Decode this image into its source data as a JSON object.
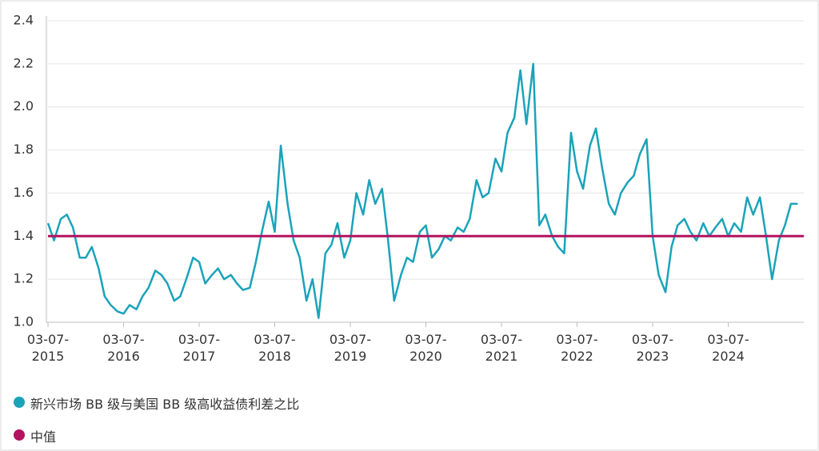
{
  "chart_data": {
    "type": "line",
    "series": [
      {
        "name": "新兴市场 BB 级与美国 BB 级高收益债利差之比",
        "color": "#1ba3b9",
        "x": [
          2015.0,
          2015.08,
          2015.17,
          2015.25,
          2015.33,
          2015.42,
          2015.5,
          2015.58,
          2015.67,
          2015.75,
          2015.83,
          2015.92,
          2016.0,
          2016.08,
          2016.17,
          2016.25,
          2016.33,
          2016.42,
          2016.5,
          2016.58,
          2016.67,
          2016.75,
          2016.83,
          2016.92,
          2017.0,
          2017.08,
          2017.17,
          2017.25,
          2017.33,
          2017.42,
          2017.5,
          2017.58,
          2017.67,
          2017.75,
          2017.83,
          2017.92,
          2018.0,
          2018.08,
          2018.17,
          2018.25,
          2018.33,
          2018.42,
          2018.5,
          2018.58,
          2018.67,
          2018.75,
          2018.83,
          2018.92,
          2019.0,
          2019.08,
          2019.17,
          2019.25,
          2019.33,
          2019.42,
          2019.5,
          2019.58,
          2019.67,
          2019.75,
          2019.83,
          2019.92,
          2020.0,
          2020.08,
          2020.17,
          2020.25,
          2020.33,
          2020.42,
          2020.5,
          2020.58,
          2020.67,
          2020.75,
          2020.83,
          2020.92,
          2021.0,
          2021.08,
          2021.17,
          2021.25,
          2021.33,
          2021.42,
          2021.5,
          2021.58,
          2021.67,
          2021.75,
          2021.83,
          2021.92,
          2022.0,
          2022.08,
          2022.17,
          2022.25,
          2022.33,
          2022.42,
          2022.5,
          2022.58,
          2022.67,
          2022.75,
          2022.83,
          2022.92,
          2023.0,
          2023.08,
          2023.17,
          2023.25,
          2023.33,
          2023.42,
          2023.5,
          2023.58,
          2023.67,
          2023.75,
          2023.83,
          2023.92,
          2024.0,
          2024.08,
          2024.17,
          2024.25,
          2024.33,
          2024.42,
          2024.5,
          2024.58,
          2024.67,
          2024.75,
          2024.83,
          2024.92
        ],
        "values": [
          1.46,
          1.38,
          1.48,
          1.5,
          1.44,
          1.3,
          1.3,
          1.35,
          1.25,
          1.12,
          1.08,
          1.05,
          1.04,
          1.08,
          1.06,
          1.12,
          1.16,
          1.24,
          1.22,
          1.18,
          1.1,
          1.12,
          1.2,
          1.3,
          1.28,
          1.18,
          1.22,
          1.25,
          1.2,
          1.22,
          1.18,
          1.15,
          1.16,
          1.28,
          1.42,
          1.56,
          1.42,
          1.82,
          1.55,
          1.38,
          1.3,
          1.1,
          1.2,
          1.02,
          1.32,
          1.36,
          1.46,
          1.3,
          1.38,
          1.6,
          1.5,
          1.66,
          1.55,
          1.62,
          1.38,
          1.1,
          1.22,
          1.3,
          1.28,
          1.42,
          1.45,
          1.3,
          1.34,
          1.4,
          1.38,
          1.44,
          1.42,
          1.48,
          1.66,
          1.58,
          1.6,
          1.76,
          1.7,
          1.88,
          1.95,
          2.17,
          1.92,
          2.2,
          1.45,
          1.5,
          1.4,
          1.35,
          1.32,
          1.88,
          1.7,
          1.62,
          1.82,
          1.9,
          1.72,
          1.55,
          1.5,
          1.6,
          1.65,
          1.68,
          1.78,
          1.85,
          1.4,
          1.22,
          1.14,
          1.35,
          1.45,
          1.48,
          1.42,
          1.38,
          1.46,
          1.4,
          1.44,
          1.48,
          1.4,
          1.46,
          1.42,
          1.58,
          1.5,
          1.58,
          1.4,
          1.2,
          1.38,
          1.45,
          1.55,
          1.55
        ]
      },
      {
        "name": "中值",
        "color": "#b3125e",
        "x": [
          2015,
          2025
        ],
        "values": [
          1.4,
          1.4
        ]
      }
    ],
    "xlim": [
      2015,
      2025
    ],
    "xticks": [
      {
        "value": 2015,
        "label": "03-07-\n2015"
      },
      {
        "value": 2016,
        "label": "03-07-\n2016"
      },
      {
        "value": 2017,
        "label": "03-07-\n2017"
      },
      {
        "value": 2018,
        "label": "03-07-\n2018"
      },
      {
        "value": 2019,
        "label": "03-07-\n2019"
      },
      {
        "value": 2020,
        "label": "03-07-\n2020"
      },
      {
        "value": 2021,
        "label": "03-07-\n2021"
      },
      {
        "value": 2022,
        "label": "03-07-\n2022"
      },
      {
        "value": 2023,
        "label": "03-07-\n2023"
      },
      {
        "value": 2024,
        "label": "03-07-\n2024"
      }
    ],
    "ylim": [
      1.0,
      2.4
    ],
    "yticks": [
      {
        "value": 1,
        "label": "1.0"
      },
      1.2,
      1.4,
      1.6,
      1.8,
      {
        "value": 2,
        "label": "2.0"
      },
      2.2,
      2.4
    ],
    "grid": true
  }
}
